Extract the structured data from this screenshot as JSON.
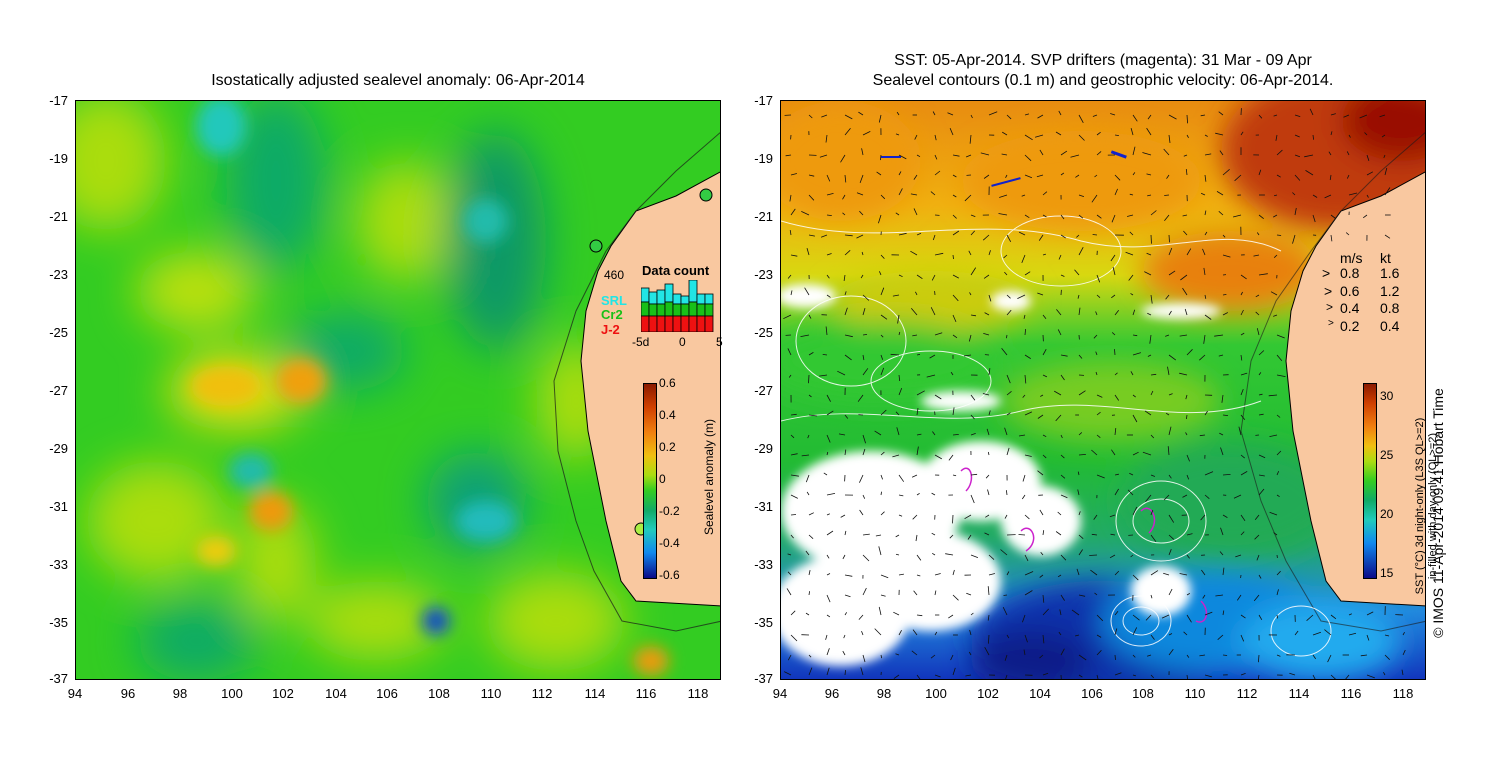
{
  "left_panel": {
    "title": "Isostatically adjusted sealevel anomaly: 06-Apr-2014",
    "lat_ticks": [
      "-17",
      "-19",
      "-21",
      "-23",
      "-25",
      "-27",
      "-29",
      "-31",
      "-33",
      "-35",
      "-37"
    ],
    "lon_ticks": [
      "94",
      "96",
      "98",
      "100",
      "102",
      "104",
      "106",
      "108",
      "110",
      "112",
      "114",
      "116",
      "118"
    ],
    "colorbar": {
      "label": "Sealevel anomaly (m)",
      "ticks": [
        "0.6",
        "0.4",
        "0.2",
        "0",
        "-0.2",
        "-0.4",
        "-0.6"
      ]
    },
    "data_count": {
      "title": "Data count",
      "max_label": "460",
      "x_ticks": [
        "-5d",
        "0",
        "5"
      ],
      "sources": [
        {
          "name": "SRL",
          "color": "#22e5e5"
        },
        {
          "name": "Cr2",
          "color": "#18c018"
        },
        {
          "name": "J-2",
          "color": "#ee1111"
        }
      ]
    }
  },
  "right_panel": {
    "title_line1": "SST: 05-Apr-2014. SVP drifters (magenta): 31 Mar - 09 Apr",
    "title_line2": "Sealevel contours (0.1 m) and geostrophic velocity: 06-Apr-2014.",
    "lat_ticks": [
      "-17",
      "-19",
      "-21",
      "-23",
      "-25",
      "-27",
      "-29",
      "-31",
      "-33",
      "-35",
      "-37"
    ],
    "lon_ticks": [
      "94",
      "96",
      "98",
      "100",
      "102",
      "104",
      "106",
      "108",
      "110",
      "112",
      "114",
      "116",
      "118"
    ],
    "velocity_legend": {
      "header_ms": "m/s",
      "header_kt": "kt",
      "rows": [
        {
          "ms": "0.8",
          "kt": "1.6"
        },
        {
          "ms": "0.6",
          "kt": "1.2"
        },
        {
          "ms": "0.4",
          "kt": "0.8"
        },
        {
          "ms": "0.2",
          "kt": "0.4"
        }
      ]
    },
    "colorbar": {
      "label_line1": "SST (°C) 3d night-only (L3S QL>=2)",
      "label_line2": "in-filled with day-only (QL>=2)",
      "ticks": [
        "30",
        "25",
        "20",
        "15"
      ]
    },
    "credit": "© IMOS 11-Apr-2014 09:41 Hobart Time"
  }
}
